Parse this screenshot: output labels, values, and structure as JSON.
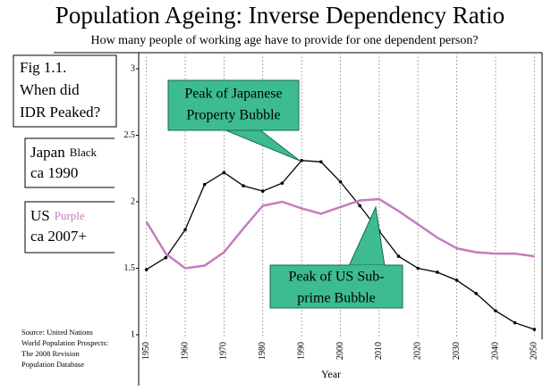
{
  "chart_data": {
    "type": "line",
    "title": "Population Ageing: Inverse Dependency Ratio",
    "subtitle": "How many people of working age have to provide for one dependent person?",
    "xlabel": "Year",
    "x": [
      1950,
      1955,
      1960,
      1965,
      1970,
      1975,
      1980,
      1985,
      1990,
      1995,
      2000,
      2005,
      2010,
      2015,
      2020,
      2025,
      2030,
      2035,
      2040,
      2045,
      2050
    ],
    "series": [
      {
        "name": "Japan",
        "color_word": "Black",
        "note": "ca 1990",
        "color": "#000000",
        "markers": true,
        "values": [
          1.49,
          1.58,
          1.79,
          2.13,
          2.22,
          2.12,
          2.08,
          2.14,
          2.31,
          2.3,
          2.15,
          1.97,
          1.78,
          1.59,
          1.5,
          1.47,
          1.41,
          1.31,
          1.18,
          1.09,
          1.04
        ]
      },
      {
        "name": "US",
        "color_word": "Purple",
        "note": "ca 2007+",
        "color": "#c77bbf",
        "markers": false,
        "values": [
          1.85,
          1.61,
          1.5,
          1.52,
          1.62,
          1.8,
          1.97,
          2.0,
          1.95,
          1.91,
          1.96,
          2.01,
          2.02,
          1.93,
          1.83,
          1.73,
          1.65,
          1.62,
          1.61,
          1.61,
          1.59
        ]
      }
    ],
    "xlim": [
      1948,
      2052
    ],
    "xticks": [
      1950,
      1960,
      1970,
      1980,
      1990,
      2000,
      2010,
      2020,
      2030,
      2040,
      2050
    ],
    "ylim": [
      1,
      3
    ],
    "yticks": [
      1,
      1.5,
      2,
      2.5,
      3
    ],
    "grid": true,
    "fig_note": [
      "Fig 1.1.",
      "When did",
      "IDR Peaked?"
    ],
    "annotations": [
      {
        "lines": [
          "Peak of Japanese",
          "Property Bubble"
        ]
      },
      {
        "lines": [
          "Peak of US Sub-",
          "prime Bubble"
        ]
      }
    ],
    "source": [
      "Source: United Nations",
      "World Population Prospects:",
      "The 2008 Revision",
      "Population Database"
    ]
  }
}
